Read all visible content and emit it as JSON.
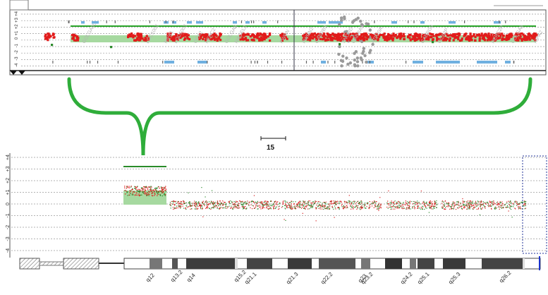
{
  "top_panel": {
    "y_ticks": [
      "+4",
      "+3",
      "+2",
      "+1",
      "0",
      "-1",
      "-2",
      "-3",
      "-4"
    ],
    "gene_labels": [
      "GOLGA6L",
      "LOC1002",
      "NIPA1",
      "LOC1003",
      "OCA2",
      "HERC2",
      "GOLGA8",
      "MAGEL2",
      "PWRN",
      "PWRN2",
      "GABRB3",
      "SNORD",
      "GABRA5",
      "ATP10A",
      "GABRG3",
      "OCA2P",
      "HERC2P",
      "GOLGA8",
      "NIPA2"
    ],
    "colors": {
      "gain": "#e81e1e",
      "normal_low": "#2e8b2e",
      "region_fill": "#a6d9a0",
      "region_line": "#2aa52a",
      "track": "#6fb0e0"
    }
  },
  "bracket": {
    "color": "#2fad3a"
  },
  "scale_bar": {
    "label": "15"
  },
  "bottom_panel": {
    "y_ticks": [
      "+4",
      "+3",
      "+2",
      "+1",
      "0",
      "-1",
      "-2",
      "-3",
      "-4"
    ]
  },
  "ideogram": {
    "band_labels": [
      "q12",
      "q13.2",
      "q14",
      "q15.2",
      "q21.1",
      "q21.3",
      "q22.2",
      "q23",
      "q23.2",
      "q24.2",
      "q25.1",
      "q25.3",
      "q26.2"
    ]
  }
}
